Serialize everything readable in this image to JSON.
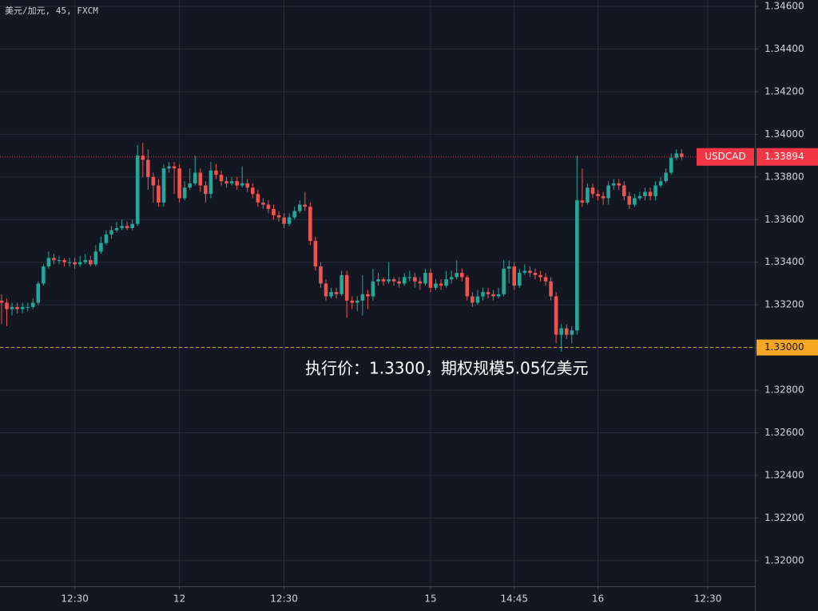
{
  "chart_data": {
    "type": "candlestick",
    "title": "美元/加元, 45, FXCM",
    "up_color": "#26a69a",
    "down_color": "#ef5350",
    "grid": true,
    "ylim": [
      1.3188,
      1.3463
    ],
    "xlim": [
      -0.3,
      144
    ],
    "yticks": [
      {
        "value": 1.32,
        "label": "1.32000"
      },
      {
        "value": 1.322,
        "label": "1.32200"
      },
      {
        "value": 1.324,
        "label": "1.32400"
      },
      {
        "value": 1.326,
        "label": "1.32600"
      },
      {
        "value": 1.328,
        "label": "1.32800"
      },
      {
        "value": 1.33,
        "label": "1.33000"
      },
      {
        "value": 1.332,
        "label": "1.33200"
      },
      {
        "value": 1.334,
        "label": "1.33400"
      },
      {
        "value": 1.336,
        "label": "1.33600"
      },
      {
        "value": 1.338,
        "label": "1.33800"
      },
      {
        "value": 1.34,
        "label": "1.34000"
      },
      {
        "value": 1.342,
        "label": "1.34200"
      },
      {
        "value": 1.344,
        "label": "1.34400"
      },
      {
        "value": 1.346,
        "label": "1.34600"
      }
    ],
    "xticks": [
      {
        "value": 14,
        "label": "12:30"
      },
      {
        "value": 34,
        "label": "12"
      },
      {
        "value": 54,
        "label": "12:30"
      },
      {
        "value": 82,
        "label": "15"
      },
      {
        "value": 98,
        "label": "14:45"
      },
      {
        "value": 114,
        "label": "16"
      },
      {
        "value": 135,
        "label": "12:30"
      }
    ],
    "open": [
      1.3322,
      1.3321,
      1.3318,
      1.3319,
      1.3318,
      1.3319,
      1.3319,
      1.3321,
      1.333,
      1.3338,
      1.3342,
      1.3341,
      1.3341,
      1.334,
      1.334,
      1.3339,
      1.334,
      1.3341,
      1.3339,
      1.3345,
      1.3349,
      1.3353,
      1.3355,
      1.3356,
      1.3357,
      1.3356,
      1.3358,
      1.339,
      1.3388,
      1.338,
      1.3376,
      1.3368,
      1.3384,
      1.3385,
      1.3384,
      1.337,
      1.3375,
      1.3377,
      1.3382,
      1.3376,
      1.3372,
      1.3383,
      1.3381,
      1.3378,
      1.3377,
      1.3378,
      1.3376,
      1.3377,
      1.3375,
      1.3372,
      1.3368,
      1.3367,
      1.3365,
      1.3362,
      1.3361,
      1.3358,
      1.3361,
      1.3364,
      1.3367,
      1.3366,
      1.335,
      1.3338,
      1.333,
      1.3324,
      1.3326,
      1.3325,
      1.3334,
      1.3322,
      1.3321,
      1.3322,
      1.3325,
      1.3324,
      1.3331,
      1.3332,
      1.3331,
      1.3332,
      1.3331,
      1.333,
      1.3333,
      1.3333,
      1.3331,
      1.333,
      1.3335,
      1.3328,
      1.333,
      1.3329,
      1.3332,
      1.3333,
      1.3335,
      1.3333,
      1.3324,
      1.3321,
      1.3324,
      1.3326,
      1.3325,
      1.3324,
      1.3325,
      1.3337,
      1.3338,
      1.3329,
      1.3335,
      1.3336,
      1.3335,
      1.3334,
      1.3333,
      1.3331,
      1.3324,
      1.3306,
      1.3309,
      1.3306,
      1.3308,
      1.3369,
      1.3368,
      1.3375,
      1.3372,
      1.3371,
      1.337,
      1.3376,
      1.3377,
      1.3376,
      1.3371,
      1.3367,
      1.337,
      1.3371,
      1.3373,
      1.3371,
      1.3376,
      1.3378,
      1.3382,
      1.3389,
      1.3391
    ],
    "high": [
      1.3325,
      1.3323,
      1.3321,
      1.3321,
      1.3321,
      1.3321,
      1.3323,
      1.3331,
      1.3339,
      1.3345,
      1.3344,
      1.3343,
      1.3342,
      1.3342,
      1.3342,
      1.3343,
      1.3344,
      1.3343,
      1.3348,
      1.3352,
      1.3355,
      1.3357,
      1.3359,
      1.336,
      1.3359,
      1.336,
      1.3395,
      1.3396,
      1.3393,
      1.3382,
      1.3379,
      1.3386,
      1.3387,
      1.3387,
      1.3386,
      1.3378,
      1.3384,
      1.339,
      1.3384,
      1.3378,
      1.3387,
      1.3386,
      1.3383,
      1.338,
      1.338,
      1.338,
      1.3385,
      1.3379,
      1.3377,
      1.3374,
      1.337,
      1.3369,
      1.3367,
      1.3364,
      1.3363,
      1.3363,
      1.3366,
      1.3369,
      1.3373,
      1.3368,
      1.3352,
      1.334,
      1.3332,
      1.3328,
      1.3328,
      1.3336,
      1.3336,
      1.3324,
      1.3324,
      1.3334,
      1.3327,
      1.3337,
      1.3335,
      1.3333,
      1.334,
      1.3333,
      1.3333,
      1.3335,
      1.3336,
      1.3335,
      1.3333,
      1.3337,
      1.3337,
      1.3332,
      1.3332,
      1.3336,
      1.3336,
      1.3341,
      1.3337,
      1.3334,
      1.3326,
      1.3327,
      1.3328,
      1.3328,
      1.3327,
      1.3328,
      1.3341,
      1.3341,
      1.334,
      1.3337,
      1.3339,
      1.3338,
      1.3337,
      1.3336,
      1.3335,
      1.3333,
      1.3326,
      1.3311,
      1.3311,
      1.331,
      1.339,
      1.3384,
      1.3377,
      1.3377,
      1.3374,
      1.3373,
      1.3378,
      1.3379,
      1.3379,
      1.3378,
      1.3373,
      1.3372,
      1.3373,
      1.3375,
      1.3375,
      1.3378,
      1.338,
      1.3384,
      1.3391,
      1.3393,
      1.3393
    ],
    "low": [
      1.3311,
      1.331,
      1.3315,
      1.3316,
      1.3316,
      1.3317,
      1.3318,
      1.332,
      1.3329,
      1.3337,
      1.3339,
      1.3339,
      1.3338,
      1.3338,
      1.3337,
      1.3338,
      1.3339,
      1.3338,
      1.3338,
      1.3344,
      1.3348,
      1.3351,
      1.3354,
      1.3355,
      1.3355,
      1.3355,
      1.3357,
      1.338,
      1.3374,
      1.3368,
      1.3366,
      1.3366,
      1.3382,
      1.3372,
      1.3368,
      1.3369,
      1.3374,
      1.3376,
      1.3373,
      1.3368,
      1.337,
      1.3379,
      1.3376,
      1.3375,
      1.3376,
      1.3374,
      1.3375,
      1.3373,
      1.337,
      1.3366,
      1.3365,
      1.3363,
      1.336,
      1.3359,
      1.3356,
      1.3357,
      1.336,
      1.3363,
      1.3364,
      1.3348,
      1.3336,
      1.3328,
      1.3322,
      1.3323,
      1.3323,
      1.3324,
      1.3314,
      1.3318,
      1.3317,
      1.3315,
      1.3318,
      1.3322,
      1.3329,
      1.3329,
      1.333,
      1.3329,
      1.3328,
      1.3329,
      1.3331,
      1.3328,
      1.3327,
      1.3329,
      1.3326,
      1.3327,
      1.3327,
      1.3328,
      1.333,
      1.3332,
      1.3331,
      1.3322,
      1.3319,
      1.332,
      1.3322,
      1.3323,
      1.3322,
      1.3323,
      1.3324,
      1.333,
      1.3327,
      1.3328,
      1.3334,
      1.3333,
      1.3332,
      1.3331,
      1.3329,
      1.3322,
      1.3302,
      1.3298,
      1.3304,
      1.3302,
      1.3306,
      1.3366,
      1.3367,
      1.337,
      1.3369,
      1.3367,
      1.3367,
      1.3374,
      1.3374,
      1.3369,
      1.3365,
      1.3366,
      1.3369,
      1.3369,
      1.3369,
      1.3369,
      1.3375,
      1.3377,
      1.3381,
      1.3388,
      1.3388
    ],
    "close": [
      1.3321,
      1.3318,
      1.3319,
      1.3318,
      1.3319,
      1.3319,
      1.3321,
      1.333,
      1.3338,
      1.3342,
      1.3341,
      1.3341,
      1.334,
      1.334,
      1.3339,
      1.334,
      1.3341,
      1.3339,
      1.3345,
      1.3349,
      1.3353,
      1.3355,
      1.3356,
      1.3357,
      1.3356,
      1.3358,
      1.339,
      1.3388,
      1.338,
      1.3376,
      1.3368,
      1.3384,
      1.3385,
      1.3384,
      1.337,
      1.3375,
      1.3377,
      1.3382,
      1.3376,
      1.3372,
      1.3383,
      1.3381,
      1.3378,
      1.3377,
      1.3378,
      1.3376,
      1.3377,
      1.3375,
      1.3372,
      1.3368,
      1.3367,
      1.3365,
      1.3362,
      1.3361,
      1.3358,
      1.3361,
      1.3364,
      1.3367,
      1.3366,
      1.335,
      1.3338,
      1.333,
      1.3324,
      1.3326,
      1.3325,
      1.3334,
      1.3322,
      1.3321,
      1.3322,
      1.3325,
      1.3324,
      1.3331,
      1.3332,
      1.3331,
      1.3332,
      1.3331,
      1.333,
      1.3333,
      1.3333,
      1.3331,
      1.333,
      1.3335,
      1.3328,
      1.333,
      1.3329,
      1.3332,
      1.3333,
      1.3335,
      1.3333,
      1.3324,
      1.3321,
      1.3324,
      1.3326,
      1.3325,
      1.3324,
      1.3325,
      1.3337,
      1.3338,
      1.3329,
      1.3335,
      1.3336,
      1.3335,
      1.3334,
      1.3333,
      1.3331,
      1.3324,
      1.3306,
      1.3309,
      1.3306,
      1.3308,
      1.3369,
      1.3368,
      1.3375,
      1.3372,
      1.3371,
      1.337,
      1.3376,
      1.3377,
      1.3376,
      1.3371,
      1.3367,
      1.337,
      1.3371,
      1.3373,
      1.3371,
      1.3376,
      1.3378,
      1.3382,
      1.3389,
      1.3391,
      1.33894
    ],
    "price_line": {
      "name": "USDCAD",
      "value": 1.33894,
      "color": "#f23645"
    },
    "strike_line": {
      "value": 1.33,
      "label": "1.33000",
      "color": "#f5a623"
    },
    "annotation": "执行价：1.3300，期权规模5.05亿美元"
  }
}
